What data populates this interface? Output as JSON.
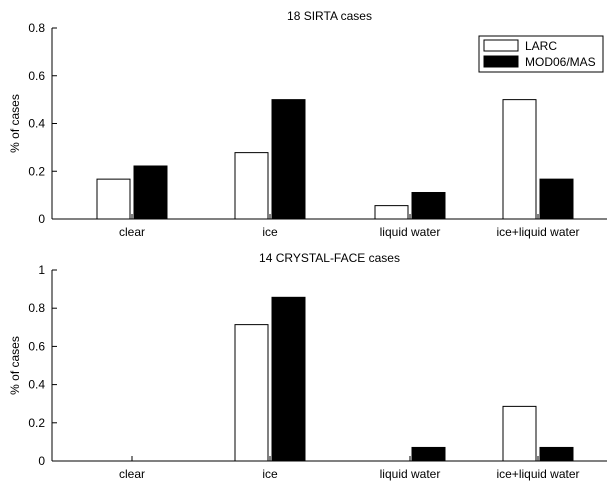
{
  "chart_data": [
    {
      "type": "bar",
      "title": "18 SIRTA cases",
      "xlabel": "",
      "ylabel": "% of cases",
      "categories": [
        "clear",
        "ice",
        "liquid water",
        "ice+liquid water"
      ],
      "ylim": [
        0,
        0.8
      ],
      "yticks": [
        "0",
        "0.2",
        "0.4",
        "0.6",
        "0.8"
      ],
      "legend_position": "top-right",
      "series": [
        {
          "name": "LARC",
          "color": "#ffffff",
          "values": [
            0.167,
            0.278,
            0.056,
            0.5
          ]
        },
        {
          "name": "MOD06/MAS",
          "color": "#000000",
          "values": [
            0.222,
            0.5,
            0.111,
            0.167
          ]
        }
      ]
    },
    {
      "type": "bar",
      "title": "14 CRYSTAL-FACE cases",
      "xlabel": "",
      "ylabel": "% of cases",
      "categories": [
        "clear",
        "ice",
        "liquid water",
        "ice+liquid water"
      ],
      "ylim": [
        0,
        1
      ],
      "yticks": [
        "0",
        "0.2",
        "0.4",
        "0.6",
        "0.8",
        "1"
      ],
      "series": [
        {
          "name": "LARC",
          "color": "#ffffff",
          "values": [
            0,
            0.714,
            0,
            0.286
          ]
        },
        {
          "name": "MOD06/MAS",
          "color": "#000000",
          "values": [
            0,
            0.857,
            0.071,
            0.071
          ]
        }
      ]
    }
  ]
}
